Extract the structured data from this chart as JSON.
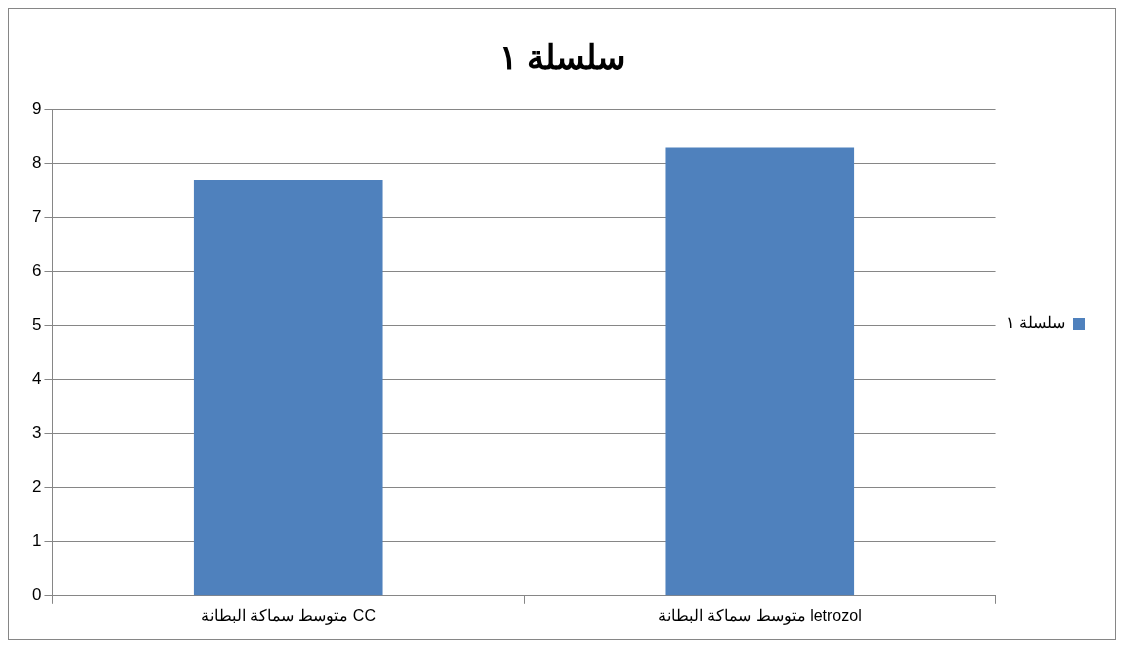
{
  "chart_data": {
    "type": "bar",
    "title": "سلسلة ١",
    "categories": [
      "متوسط سماكة البطانة CC",
      "متوسط سماكة البطانة letrozol"
    ],
    "series": [
      {
        "name": "سلسلة ١",
        "color": "#4f81bd",
        "values": [
          7.7,
          8.3
        ]
      }
    ],
    "ylim": [
      0,
      9
    ],
    "yticks": [
      0,
      1,
      2,
      3,
      4,
      5,
      6,
      7,
      8,
      9
    ],
    "grid": "y",
    "legend": "right"
  }
}
